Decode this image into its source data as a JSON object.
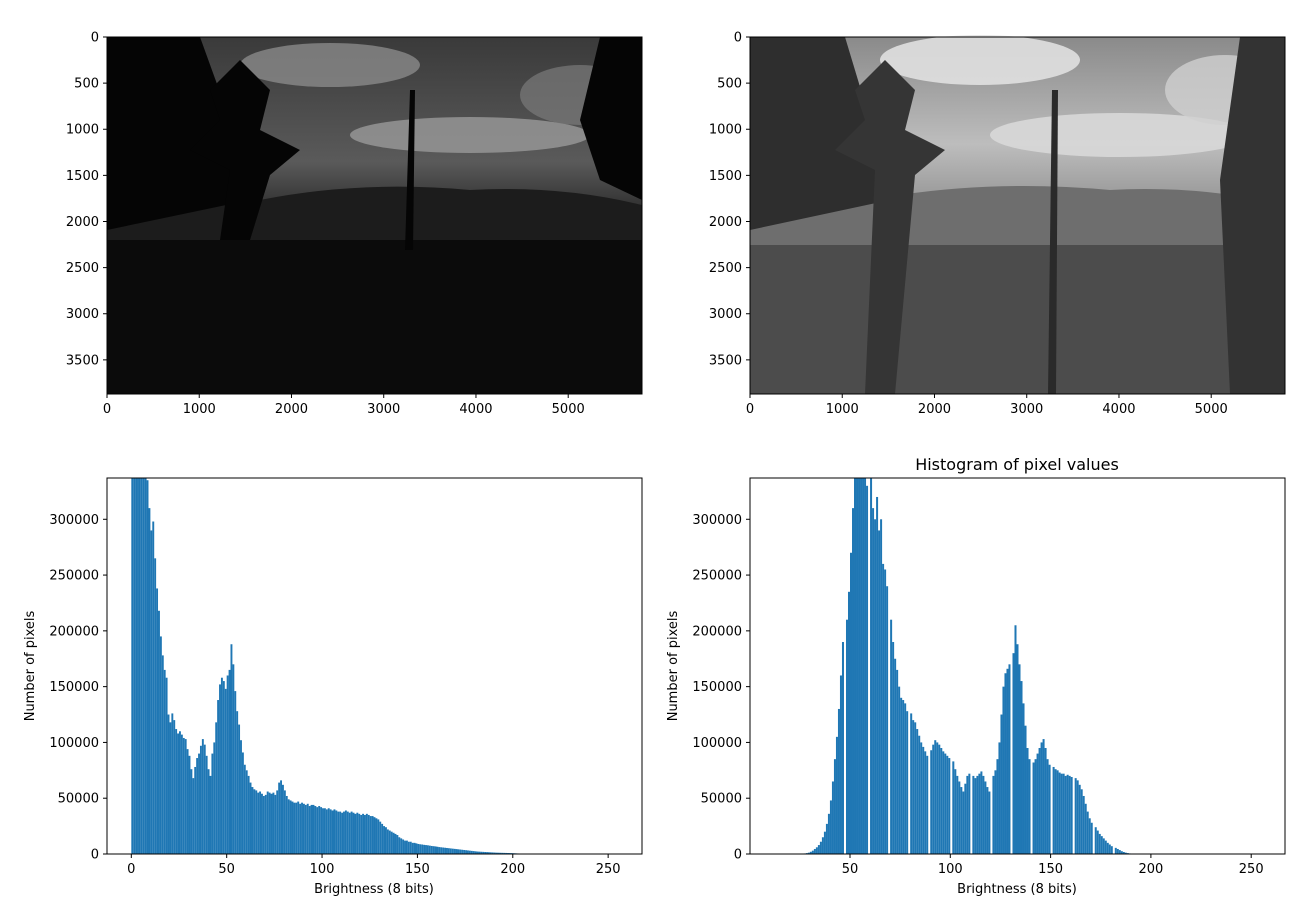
{
  "chart_data": [
    {
      "type": "image",
      "description": "photo",
      "xlim": [
        0,
        5800
      ],
      "ylim": [
        3870,
        0
      ],
      "xticks": [
        0,
        1000,
        2000,
        3000,
        4000,
        5000
      ],
      "yticks": [
        0,
        500,
        1000,
        1500,
        2000,
        2500,
        3000,
        3500
      ],
      "variant": "dark"
    },
    {
      "type": "image",
      "description": "photo",
      "xlim": [
        0,
        5800
      ],
      "ylim": [
        3870,
        0
      ],
      "xticks": [
        0,
        1000,
        2000,
        3000,
        4000,
        5000
      ],
      "yticks": [
        0,
        500,
        1000,
        1500,
        2000,
        2500,
        3000,
        3500
      ],
      "variant": "equalized"
    },
    {
      "type": "bar",
      "title": "",
      "xlabel": "Brightness (8 bits)",
      "ylabel": "Number of pixels",
      "xlim": [
        -12.75,
        267.75
      ],
      "ylim": [
        0,
        337000
      ],
      "xticks": [
        0,
        50,
        100,
        150,
        200,
        250
      ],
      "yticks": [
        0,
        50000,
        100000,
        150000,
        200000,
        250000,
        300000
      ],
      "color": "#1f77b4",
      "bin_edges_start": 0,
      "bin_width": 1,
      "values": [
        500000,
        470000,
        440000,
        410000,
        380000,
        360000,
        345000,
        342000,
        335000,
        310000,
        290000,
        298000,
        265000,
        238000,
        218000,
        195000,
        178000,
        165000,
        158000,
        125000,
        118000,
        126000,
        120000,
        112000,
        108000,
        110000,
        107000,
        104000,
        103000,
        94000,
        88000,
        76000,
        68000,
        78000,
        86000,
        90000,
        97000,
        103000,
        98000,
        88000,
        76000,
        70000,
        90000,
        100000,
        118000,
        138000,
        152000,
        158000,
        155000,
        148000,
        160000,
        165000,
        188000,
        170000,
        146000,
        128000,
        116000,
        102000,
        91000,
        80000,
        75000,
        70000,
        64000,
        60000,
        58000,
        57000,
        55000,
        56000,
        54000,
        52000,
        53000,
        56000,
        55000,
        54000,
        55000,
        53000,
        57000,
        64000,
        66000,
        62000,
        57000,
        52000,
        49000,
        48000,
        47000,
        46000,
        46000,
        47000,
        45000,
        46000,
        45000,
        44000,
        45000,
        43000,
        44000,
        44000,
        43000,
        42000,
        43000,
        42000,
        41000,
        41000,
        40000,
        41000,
        40000,
        39000,
        40000,
        39000,
        38000,
        38000,
        37000,
        38000,
        39000,
        38000,
        37000,
        38000,
        37000,
        36000,
        37000,
        36000,
        35000,
        36000,
        35000,
        36000,
        35000,
        34000,
        34000,
        33000,
        32000,
        31000,
        29000,
        27000,
        25000,
        24000,
        22000,
        21000,
        20000,
        19000,
        18000,
        17000,
        15000,
        14000,
        13000,
        12000,
        12000,
        11000,
        11000,
        10000,
        10000,
        9500,
        9000,
        8700,
        8500,
        8200,
        8000,
        7800,
        7500,
        7200,
        7000,
        6800,
        6500,
        6200,
        6000,
        5800,
        5600,
        5400,
        5200,
        5000,
        4800,
        4600,
        4400,
        4200,
        4000,
        3800,
        3600,
        3400,
        3200,
        3000,
        2800,
        2600,
        2400,
        2200,
        2100,
        2000,
        1900,
        1800,
        1700,
        1600,
        1500,
        1400,
        1300,
        1200,
        1150,
        1100,
        1050,
        1000,
        950,
        900,
        850,
        800,
        700,
        600,
        500,
        400,
        300,
        200,
        150,
        100,
        80,
        60,
        50,
        40,
        30,
        20,
        15,
        10,
        8,
        6,
        5,
        4,
        3,
        2,
        1,
        1,
        0,
        0,
        0,
        0,
        0,
        0,
        0,
        0,
        0,
        0,
        0,
        0,
        0,
        0,
        0,
        0,
        0,
        0,
        0,
        0,
        0,
        0,
        0,
        0,
        0,
        0,
        0,
        0,
        0,
        0,
        0,
        0,
        0,
        0,
        0,
        0,
        0,
        0
      ]
    },
    {
      "type": "bar",
      "title": "Histogram of pixel values",
      "xlabel": "Brightness (8 bits)",
      "ylabel": "Number of pixels",
      "xlim": [
        0.15,
        266.85
      ],
      "ylim": [
        0,
        337000
      ],
      "xticks": [
        50,
        100,
        150,
        200,
        250
      ],
      "yticks": [
        0,
        50000,
        100000,
        150000,
        200000,
        250000,
        300000
      ],
      "color": "#1f77b4",
      "bin_edges_start": 13,
      "bin_width": 1,
      "values": [
        0,
        0,
        0,
        0,
        0,
        0,
        0,
        0,
        0,
        0,
        0,
        0,
        0,
        0,
        500,
        800,
        1200,
        2000,
        3000,
        4500,
        6000,
        8000,
        11000,
        15000,
        20000,
        27000,
        36000,
        48000,
        65000,
        85000,
        105000,
        130000,
        160000,
        190000,
        0,
        210000,
        235000,
        270000,
        310000,
        345000,
        360000,
        380000,
        370000,
        340000,
        345000,
        330000,
        0,
        340000,
        310000,
        300000,
        320000,
        290000,
        300000,
        260000,
        255000,
        240000,
        0,
        210000,
        190000,
        175000,
        165000,
        150000,
        140000,
        138000,
        135000,
        128000,
        0,
        126000,
        120000,
        118000,
        112000,
        106000,
        100000,
        96000,
        92000,
        88000,
        0,
        93000,
        98000,
        102000,
        100000,
        98000,
        95000,
        92000,
        90000,
        88000,
        86000,
        0,
        83000,
        76000,
        70000,
        65000,
        60000,
        56000,
        63000,
        70000,
        72000,
        0,
        70000,
        68000,
        70000,
        72000,
        74000,
        70000,
        65000,
        60000,
        56000,
        0,
        70000,
        75000,
        85000,
        100000,
        125000,
        150000,
        162000,
        166000,
        170000,
        0,
        180000,
        205000,
        188000,
        170000,
        155000,
        135000,
        115000,
        95000,
        85000,
        0,
        82000,
        85000,
        90000,
        95000,
        100000,
        103000,
        95000,
        85000,
        80000,
        0,
        78000,
        76000,
        75000,
        73000,
        72000,
        72000,
        70000,
        71000,
        70000,
        69000,
        0,
        68000,
        66000,
        62000,
        58000,
        52000,
        45000,
        38000,
        32000,
        28000,
        0,
        24000,
        21000,
        18000,
        16000,
        14000,
        12000,
        10000,
        8500,
        7000,
        0,
        5500,
        4500,
        3500,
        2500,
        1800,
        1200,
        800,
        500,
        300,
        200,
        100,
        50,
        0,
        0,
        0,
        0,
        0,
        0,
        0,
        0,
        0,
        0,
        0,
        0,
        0,
        0,
        0,
        0,
        0,
        0,
        0,
        0,
        0,
        0,
        0,
        0,
        0,
        0,
        0,
        0,
        0,
        0,
        0,
        0
      ]
    }
  ]
}
